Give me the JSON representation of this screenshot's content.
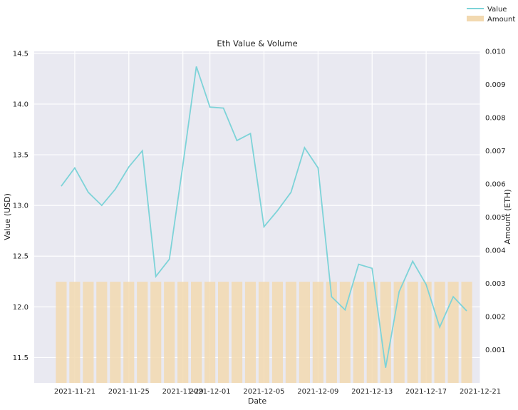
{
  "chart_data": {
    "type": "line",
    "title": "Eth Value & Volume",
    "xlabel": "Date",
    "ylabel": "Value (USD)",
    "ylabel_right": "Amount (ETH)",
    "legend_position": "top-right",
    "grid": true,
    "colors": {
      "plot_background": "#e9e9f1",
      "grid": "#ffffff",
      "value_line": "#7dd3d8",
      "amount_bars": "#f2d9b0"
    },
    "x": [
      "2021-11-20",
      "2021-11-21",
      "2021-11-22",
      "2021-11-23",
      "2021-11-24",
      "2021-11-25",
      "2021-11-26",
      "2021-11-27",
      "2021-11-28",
      "2021-11-29",
      "2021-11-30",
      "2021-12-01",
      "2021-12-02",
      "2021-12-03",
      "2021-12-04",
      "2021-12-05",
      "2021-12-06",
      "2021-12-07",
      "2021-12-08",
      "2021-12-09",
      "2021-12-10",
      "2021-12-11",
      "2021-12-12",
      "2021-12-13",
      "2021-12-14",
      "2021-12-15",
      "2021-12-16",
      "2021-12-17",
      "2021-12-18",
      "2021-12-19",
      "2021-12-20"
    ],
    "x_range": [
      "2021-11-18",
      "2021-12-21"
    ],
    "x_ticks": [
      "2021-11-21",
      "2021-11-25",
      "2021-11-29",
      "2021-12-01",
      "2021-12-05",
      "2021-12-09",
      "2021-12-13",
      "2021-12-17",
      "2021-12-21"
    ],
    "y_left": {
      "range": [
        11.25,
        14.52
      ],
      "ticks": [
        "11.5",
        "12.0",
        "12.5",
        "13.0",
        "13.5",
        "14.0",
        "14.5"
      ]
    },
    "y_right": {
      "range": [
        0.0,
        0.01
      ],
      "ticks": [
        "0.001",
        "0.002",
        "0.003",
        "0.004",
        "0.005",
        "0.006",
        "0.007",
        "0.008",
        "0.009",
        "0.010"
      ]
    },
    "series": [
      {
        "name": "Value",
        "kind": "line",
        "axis": "left",
        "values": [
          13.19,
          13.37,
          13.13,
          13.0,
          13.16,
          13.38,
          13.54,
          12.3,
          12.47,
          13.4,
          14.37,
          13.97,
          13.96,
          13.64,
          13.71,
          12.79,
          12.95,
          13.13,
          13.57,
          13.37,
          12.1,
          11.97,
          12.42,
          12.38,
          11.4,
          12.15,
          12.45,
          12.22,
          11.8,
          12.1,
          11.96
        ]
      },
      {
        "name": "Amount",
        "kind": "bar",
        "axis": "right",
        "values": [
          0.00305,
          0.00305,
          0.00305,
          0.00305,
          0.00305,
          0.00305,
          0.00305,
          0.00305,
          0.00305,
          0.00305,
          0.00305,
          0.00305,
          0.00305,
          0.00305,
          0.00305,
          0.00305,
          0.00305,
          0.00305,
          0.00305,
          0.00305,
          0.00305,
          0.00305,
          0.00305,
          0.00305,
          0.00305,
          0.00305,
          0.00305,
          0.00305,
          0.00305,
          0.00305,
          0.00305
        ]
      }
    ]
  }
}
